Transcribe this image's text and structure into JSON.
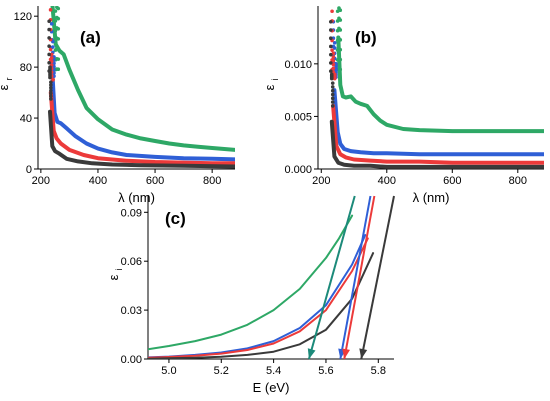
{
  "figure": {
    "colors": {
      "black": "#3a3a3a",
      "red": "#ec3a3a",
      "blue": "#2f5fd6",
      "green": "#2ea866",
      "teal": "#1c8a7a"
    }
  },
  "chart_data": [
    {
      "id": "a",
      "type": "line",
      "panel_label": "(a)",
      "xlabel": "λ (nm)",
      "ylabel": "ε",
      "ylabel_sub": "r",
      "xlim": [
        190,
        880
      ],
      "ylim": [
        0,
        128
      ],
      "xticks": [
        "200",
        "400",
        "600",
        "800"
      ],
      "xtick_values": [
        200,
        400,
        600,
        800
      ],
      "yticks": [
        "0",
        "40",
        "80",
        "120"
      ],
      "ytick_values": [
        0,
        40,
        80,
        120
      ],
      "series": [
        {
          "color": "green",
          "x": [
            240,
            252,
            265,
            280,
            300,
            330,
            360,
            400,
            450,
            500,
            550,
            600,
            650,
            700,
            750,
            800,
            880
          ],
          "y": [
            130,
            98,
            93,
            90,
            78,
            62,
            48,
            39,
            31,
            27,
            24,
            22,
            20,
            18.5,
            17.5,
            16.5,
            15
          ],
          "dots_x": [
            251,
            256,
            261
          ],
          "dots_y": [
            124,
            127,
            126
          ]
        },
        {
          "color": "blue",
          "x": [
            238,
            248,
            258,
            270,
            290,
            320,
            360,
            400,
            450,
            500,
            600,
            700,
            800,
            880
          ],
          "y": [
            85,
            44,
            37,
            36,
            32,
            26,
            20,
            16,
            13,
            11,
            9.5,
            8.5,
            8,
            7.5
          ],
          "dots_x": [
            238,
            242,
            246
          ],
          "dots_y": [
            114,
            100,
            88
          ]
        },
        {
          "color": "red",
          "x": [
            235,
            245,
            255,
            270,
            300,
            350,
            400,
            500,
            600,
            700,
            800,
            880
          ],
          "y": [
            60,
            30,
            24,
            20,
            15,
            11,
            8.5,
            6.5,
            5.5,
            5,
            4.5,
            4.5
          ],
          "dots_x": [
            234,
            238,
            242
          ],
          "dots_y": [
            125,
            90,
            70
          ]
        },
        {
          "color": "black",
          "x": [
            232,
            240,
            250,
            265,
            290,
            330,
            380,
            450,
            550,
            700,
            880
          ],
          "y": [
            45,
            18,
            14,
            12,
            8,
            6,
            4.5,
            3.5,
            3,
            2.5,
            2
          ],
          "dots_x": [
            229,
            232,
            235
          ],
          "dots_y": [
            116,
            80,
            55
          ]
        }
      ]
    },
    {
      "id": "b",
      "type": "line",
      "panel_label": "(b)",
      "xlabel": "λ (nm)",
      "ylabel": "ε",
      "ylabel_sub": "i",
      "xlim": [
        190,
        880
      ],
      "ylim": [
        0,
        0.0155
      ],
      "xticks": [
        "200",
        "400",
        "600",
        "800"
      ],
      "xtick_values": [
        200,
        400,
        600,
        800
      ],
      "yticks": [
        "0.000",
        "0.005",
        "0.010"
      ],
      "ytick_values": [
        0,
        0.005,
        0.01
      ],
      "series": [
        {
          "color": "green",
          "x": [
            252,
            258,
            266,
            275,
            290,
            305,
            320,
            340,
            360,
            380,
            400,
            450,
            500,
            600,
            700,
            800,
            880
          ],
          "y": [
            0.0125,
            0.008,
            0.0069,
            0.0068,
            0.0069,
            0.0064,
            0.0062,
            0.006,
            0.0052,
            0.0046,
            0.0042,
            0.0038,
            0.0037,
            0.0036,
            0.0036,
            0.0036,
            0.0036
          ],
          "dots_x": [
            250,
            254,
            258
          ],
          "dots_y": [
            0.015,
            0.0153,
            0.0151
          ]
        },
        {
          "color": "blue",
          "x": [
            240,
            250,
            258,
            270,
            290,
            320,
            360,
            400,
            500,
            600,
            700,
            800,
            880
          ],
          "y": [
            0.0075,
            0.0035,
            0.0024,
            0.0019,
            0.0017,
            0.0016,
            0.0015,
            0.0015,
            0.0014,
            0.0014,
            0.0014,
            0.0014,
            0.0014
          ],
          "dots_x": [
            237,
            241,
            245
          ],
          "dots_y": [
            0.014,
            0.012,
            0.01
          ]
        },
        {
          "color": "red",
          "x": [
            236,
            246,
            258,
            275,
            300,
            350,
            400,
            500,
            600,
            700,
            880
          ],
          "y": [
            0.006,
            0.0022,
            0.0014,
            0.0011,
            0.0009,
            0.0008,
            0.0007,
            0.0007,
            0.0006,
            0.0006,
            0.0006
          ],
          "dots_x": [
            233,
            237,
            241
          ],
          "dots_y": [
            0.015,
            0.011,
            0.009
          ]
        },
        {
          "color": "black",
          "x": [
            232,
            240,
            252,
            270,
            300,
            350,
            400,
            500,
            600,
            700,
            880
          ],
          "y": [
            0.0045,
            0.0012,
            0.0006,
            0.0004,
            0.0003,
            0.0003,
            0.0002,
            0.0002,
            0.0002,
            0.0002,
            0.0002
          ],
          "dots_x": [
            229,
            232,
            235
          ],
          "dots_y": [
            0.014,
            0.009,
            0.006
          ]
        }
      ]
    },
    {
      "id": "c",
      "type": "line",
      "panel_label": "(c)",
      "xlabel": "E (eV)",
      "ylabel": "ε",
      "ylabel_sub": "i",
      "xlim": [
        4.92,
        5.86
      ],
      "ylim": [
        0,
        0.1
      ],
      "xticks": [
        "5.0",
        "5.2",
        "5.4",
        "5.6",
        "5.8"
      ],
      "xtick_values": [
        5.0,
        5.2,
        5.4,
        5.6,
        5.8
      ],
      "yticks": [
        "0.00",
        "0.03",
        "0.06",
        "0.09"
      ],
      "ytick_values": [
        0,
        0.03,
        0.06,
        0.09
      ],
      "series": [
        {
          "color": "green",
          "x": [
            4.92,
            5.0,
            5.1,
            5.2,
            5.3,
            5.4,
            5.5,
            5.6,
            5.65,
            5.7
          ],
          "y": [
            0.006,
            0.008,
            0.011,
            0.015,
            0.021,
            0.03,
            0.043,
            0.062,
            0.074,
            0.088
          ]
        },
        {
          "color": "blue",
          "x": [
            4.92,
            5.0,
            5.1,
            5.2,
            5.3,
            5.4,
            5.5,
            5.6,
            5.7,
            5.75
          ],
          "y": [
            0.001,
            0.0015,
            0.0025,
            0.004,
            0.0065,
            0.011,
            0.019,
            0.033,
            0.058,
            0.076
          ]
        },
        {
          "color": "red",
          "x": [
            4.92,
            5.0,
            5.1,
            5.2,
            5.3,
            5.4,
            5.5,
            5.6,
            5.7,
            5.76
          ],
          "y": [
            0.0008,
            0.0012,
            0.002,
            0.0033,
            0.0055,
            0.0095,
            0.017,
            0.03,
            0.054,
            0.074
          ]
        },
        {
          "color": "black",
          "x": [
            4.92,
            5.0,
            5.1,
            5.2,
            5.3,
            5.4,
            5.5,
            5.6,
            5.7,
            5.78
          ],
          "y": [
            0.0002,
            0.0004,
            0.0008,
            0.0014,
            0.0025,
            0.0045,
            0.009,
            0.018,
            0.037,
            0.065
          ]
        }
      ],
      "tangents": [
        {
          "color": "teal",
          "x1": 5.71,
          "y1": 0.1,
          "x2": 5.535,
          "y2": 0.0
        },
        {
          "color": "blue",
          "x1": 5.77,
          "y1": 0.1,
          "x2": 5.655,
          "y2": 0.0
        },
        {
          "color": "red",
          "x1": 5.785,
          "y1": 0.1,
          "x2": 5.67,
          "y2": 0.0
        },
        {
          "color": "black",
          "x1": 5.86,
          "y1": 0.1,
          "x2": 5.735,
          "y2": 0.0
        }
      ]
    }
  ]
}
